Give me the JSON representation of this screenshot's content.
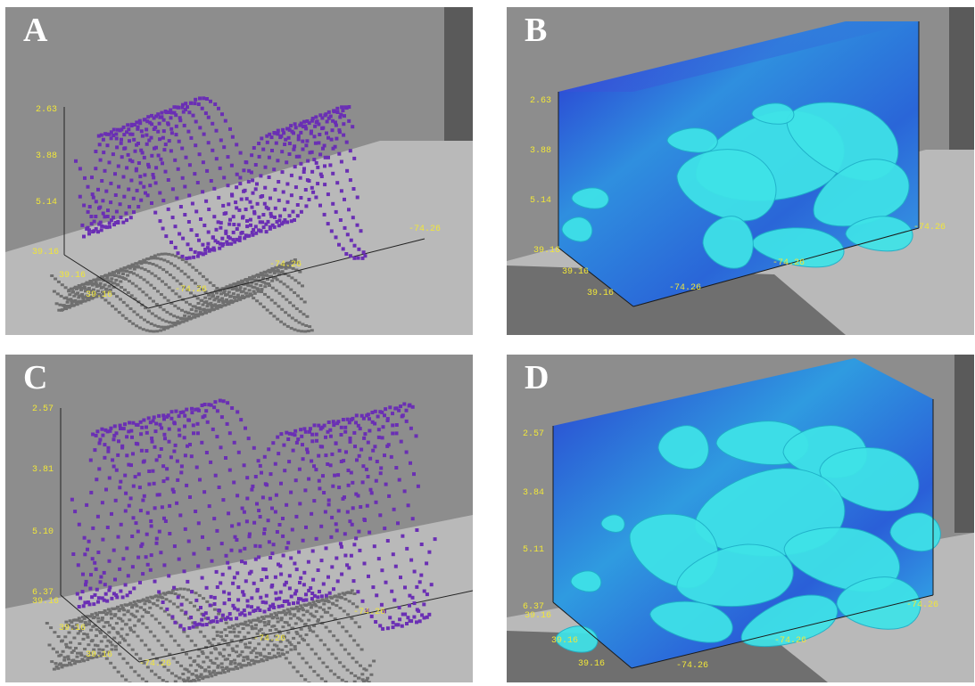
{
  "colors": {
    "background_wall": "#8d8d8d",
    "floor": "#b8b8b8",
    "side_wall": "#5a5a5a",
    "points": "#6a2fb4",
    "shadow": "#6f6f6f",
    "surface": "#3fe3e8",
    "volume_deep": "#1f3fd0",
    "volume_mid": "#2f9be0",
    "tick_label": "#f0e63a"
  },
  "panels": [
    {
      "letter": "A",
      "view": "point-cloud",
      "depth_ticks": [
        "2.63",
        "3.88",
        "5.14"
      ],
      "lat_ticks": [
        "39.16",
        "39.16",
        "39.16"
      ],
      "lon_ticks": [
        "-74.26",
        "-74.26",
        "-74.26"
      ]
    },
    {
      "letter": "B",
      "view": "isosurface-volume",
      "depth_ticks": [
        "2.63",
        "3.88",
        "5.14"
      ],
      "lat_ticks": [
        "39.16",
        "39.16",
        "39.16"
      ],
      "lon_ticks": [
        "-74.26",
        "-74.26",
        "-74.26"
      ]
    },
    {
      "letter": "C",
      "view": "point-cloud",
      "depth_ticks": [
        "2.57",
        "3.81",
        "5.10",
        "6.37"
      ],
      "lat_ticks": [
        "39.16",
        "39.16",
        "39.16"
      ],
      "lon_ticks": [
        "-74.26",
        "-74.26",
        "-74.26"
      ]
    },
    {
      "letter": "D",
      "view": "isosurface-volume",
      "depth_ticks": [
        "2.57",
        "3.84",
        "5.11",
        "6.37"
      ],
      "lat_ticks": [
        "39.16",
        "39.16",
        "39.16"
      ],
      "lon_ticks": [
        "-74.26",
        "-74.26",
        "-74.26"
      ]
    }
  ]
}
